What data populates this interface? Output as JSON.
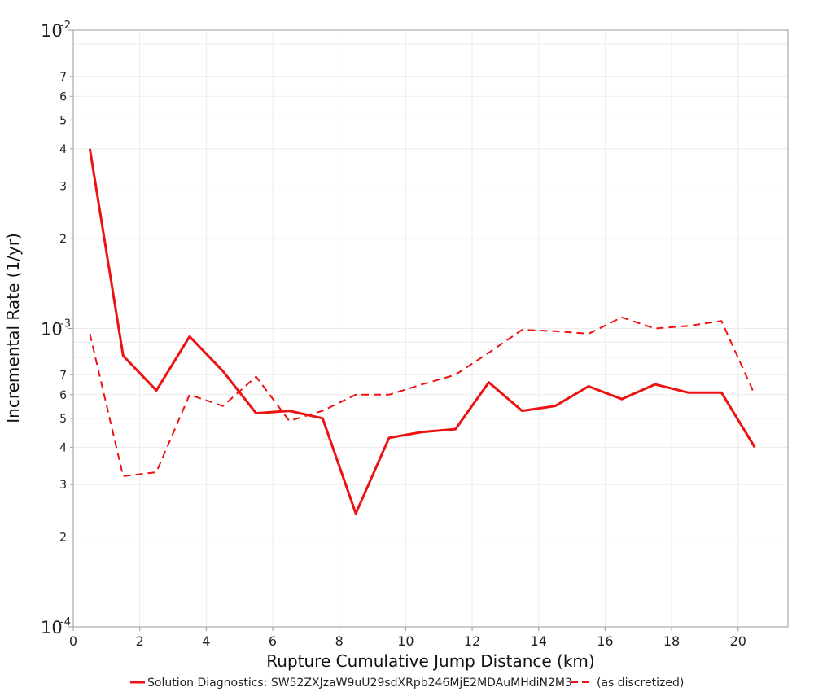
{
  "chart_data": {
    "type": "line",
    "xlabel": "Rupture Cumulative Jump Distance (km)",
    "ylabel": "Incremental Rate (1/yr)",
    "xlim": [
      0,
      21.5
    ],
    "ylim": [
      0.0001,
      0.01
    ],
    "yscale": "log",
    "grid": true,
    "legend_position": "bottom",
    "x_ticks": [
      0,
      2,
      4,
      6,
      8,
      10,
      12,
      14,
      16,
      18,
      20
    ],
    "y_major_ticks": [
      {
        "value": 0.0001,
        "base": "10",
        "exp": "-4"
      },
      {
        "value": 0.001,
        "base": "10",
        "exp": "-3"
      },
      {
        "value": 0.01,
        "base": "10",
        "exp": "-2"
      }
    ],
    "y_minor_ticks": [
      {
        "value": 0.0002,
        "label": "2"
      },
      {
        "value": 0.0003,
        "label": "3"
      },
      {
        "value": 0.0004,
        "label": "4"
      },
      {
        "value": 0.0005,
        "label": "5"
      },
      {
        "value": 0.0006,
        "label": "6"
      },
      {
        "value": 0.0007,
        "label": "7"
      },
      {
        "value": 0.002,
        "label": "2"
      },
      {
        "value": 0.003,
        "label": "3"
      },
      {
        "value": 0.004,
        "label": "4"
      },
      {
        "value": 0.005,
        "label": "5"
      },
      {
        "value": 0.006,
        "label": "6"
      },
      {
        "value": 0.007,
        "label": "7"
      }
    ],
    "y_grid_only": [
      0.0008,
      0.0009,
      0.008,
      0.009
    ],
    "series": [
      {
        "name": "Solution Diagnostics: SW52ZXJzaW9uU29sdXRpb246MjE2MDAuMHdiN2M3",
        "color": "#ee1111",
        "dash": "solid",
        "x": [
          0.5,
          1.5,
          2.5,
          3.5,
          4.5,
          5.5,
          6.5,
          7.5,
          8.5,
          9.5,
          10.5,
          11.5,
          12.5,
          13.5,
          14.5,
          15.5,
          16.5,
          17.5,
          18.5,
          19.5,
          20.5
        ],
        "y": [
          0.004,
          0.00081,
          0.00062,
          0.00094,
          0.00072,
          0.00052,
          0.00053,
          0.0005,
          0.00024,
          0.00043,
          0.00045,
          0.00046,
          0.00066,
          0.00053,
          0.00055,
          0.00064,
          0.00058,
          0.00065,
          0.00061,
          0.00061,
          0.0004
        ]
      },
      {
        "name": "(as discretized)",
        "color": "#ee1111",
        "dash": "dashed",
        "x": [
          0.5,
          1.5,
          2.5,
          3.5,
          4.5,
          5.5,
          6.5,
          7.5,
          8.5,
          9.5,
          10.5,
          11.5,
          12.5,
          13.5,
          14.5,
          15.5,
          16.5,
          17.5,
          18.5,
          19.5,
          20.5
        ],
        "y": [
          0.00096,
          0.00032,
          0.00033,
          0.0006,
          0.00055,
          0.00069,
          0.00049,
          0.00053,
          0.0006,
          0.0006,
          0.00065,
          0.0007,
          0.00083,
          0.00099,
          0.00098,
          0.00096,
          0.00109,
          0.001,
          0.00102,
          0.00106,
          0.0006
        ]
      }
    ]
  }
}
